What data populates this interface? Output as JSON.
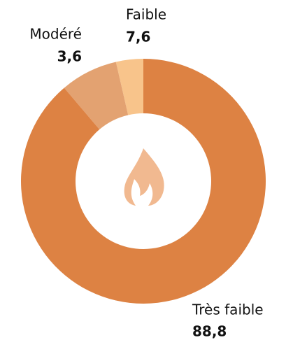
{
  "chart_data": {
    "type": "donut",
    "categories": [
      "Très faible",
      "Faible",
      "Modéré"
    ],
    "values": [
      88.8,
      7.6,
      3.6
    ],
    "value_labels": [
      "88,8",
      "7,6",
      "3,6"
    ],
    "colors": [
      "#dd8243",
      "#e3a271",
      "#f8c48b"
    ]
  }
}
